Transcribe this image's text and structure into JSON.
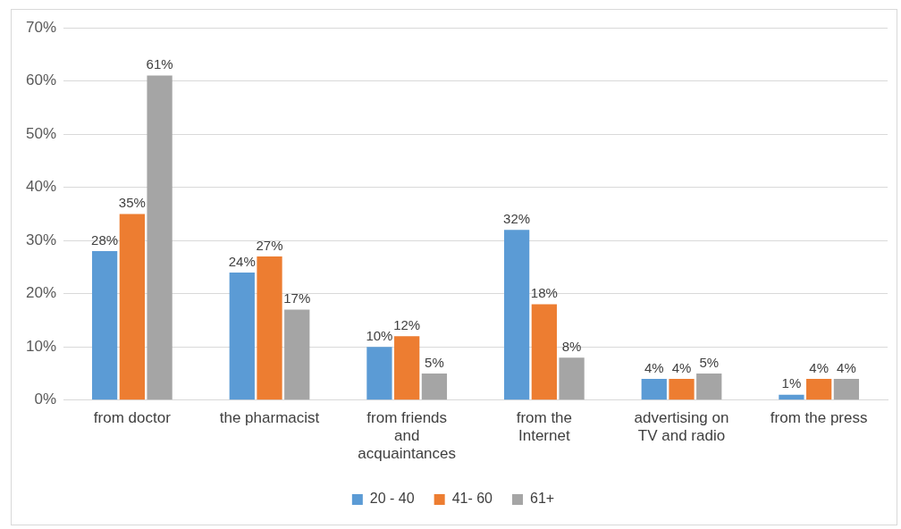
{
  "chart_data": {
    "type": "bar",
    "categories": [
      "from doctor",
      "the pharmacist",
      "from friends and acquaintances",
      "from the Internet",
      "advertising on TV and radio",
      "from the press"
    ],
    "series": [
      {
        "name": "20 - 40",
        "color": "#5b9bd5",
        "values": [
          28,
          24,
          10,
          32,
          4,
          1
        ],
        "value_labels": [
          "28%",
          "24%",
          "10%",
          "32%",
          "4%",
          "1%"
        ]
      },
      {
        "name": "41- 60",
        "color": "#ed7d31",
        "values": [
          35,
          27,
          12,
          18,
          4,
          4
        ],
        "value_labels": [
          "35%",
          "27%",
          "12%",
          "18%",
          "4%",
          "4%"
        ]
      },
      {
        "name": "61+",
        "color": "#a5a5a5",
        "values": [
          61,
          17,
          5,
          8,
          5,
          4
        ],
        "value_labels": [
          "61%",
          "17%",
          "5%",
          "8%",
          "5%",
          "4%"
        ]
      }
    ],
    "ylim": [
      0,
      70
    ],
    "yticks": [
      {
        "value": 0,
        "label": "0%"
      },
      {
        "value": 10,
        "label": "10%"
      },
      {
        "value": 20,
        "label": "20%"
      },
      {
        "value": 30,
        "label": "30%"
      },
      {
        "value": 40,
        "label": "40%"
      },
      {
        "value": 50,
        "label": "50%"
      },
      {
        "value": 60,
        "label": "60%"
      },
      {
        "value": 70,
        "label": "70%"
      }
    ],
    "grid": "y",
    "legend": "bottom"
  }
}
